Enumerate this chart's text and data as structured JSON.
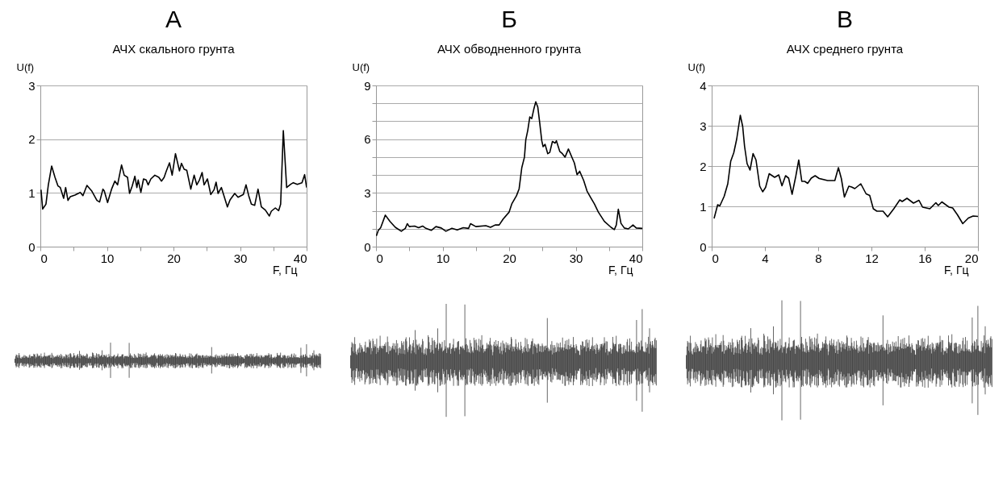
{
  "chart_data": [
    {
      "type": "line",
      "title": "А",
      "subtitle": "АЧХ скального грунта",
      "xlabel": "F, Гц",
      "ylabel": "U(f)",
      "xlim": [
        0,
        40
      ],
      "ylim": [
        0,
        3
      ],
      "xticks": [
        0,
        {
          "value": 5,
          "label": null
        },
        10,
        {
          "value": 15,
          "label": null
        },
        20,
        {
          "value": 25,
          "label": null
        },
        30,
        {
          "value": 35,
          "label": null
        },
        40
      ],
      "yticks": [
        0,
        1,
        2,
        3
      ],
      "grid": "y",
      "series": [
        {
          "color": "#000000",
          "x": [
            0.1,
            0.35,
            0.84,
            1.2,
            1.7,
            2.2,
            2.65,
            3.0,
            3.5,
            3.8,
            4.15,
            4.5,
            5.2,
            6.0,
            6.4,
            7.0,
            7.7,
            8.5,
            8.9,
            9.4,
            9.6,
            10.1,
            10.7,
            11.2,
            11.6,
            12.2,
            12.6,
            13.1,
            13.4,
            13.8,
            14.2,
            14.5,
            14.7,
            15.1,
            15.5,
            15.9,
            16.2,
            16.6,
            17.2,
            17.8,
            18.2,
            18.6,
            18.9,
            19.4,
            19.8,
            20.3,
            20.9,
            21.2,
            21.6,
            22.0,
            22.6,
            23.1,
            23.5,
            23.9,
            24.3,
            24.6,
            25.1,
            25.6,
            26.1,
            26.4,
            26.7,
            27.2,
            28.1,
            28.5,
            29.2,
            29.7,
            30.5,
            30.9,
            31.3,
            31.7,
            32.2,
            32.7,
            33.2,
            33.8,
            34.4,
            34.7,
            35.3,
            35.8,
            36.1,
            36.5,
            37.0,
            37.6,
            38.0,
            38.6,
            39.3,
            39.7,
            40.0
          ],
          "values": [
            1.06,
            0.7,
            0.79,
            1.15,
            1.5,
            1.29,
            1.13,
            1.1,
            0.9,
            1.1,
            0.86,
            0.93,
            0.96,
            1.01,
            0.95,
            1.14,
            1.04,
            0.86,
            0.83,
            1.07,
            1.04,
            0.82,
            1.07,
            1.22,
            1.15,
            1.52,
            1.33,
            1.29,
            0.99,
            1.13,
            1.31,
            1.1,
            1.24,
            1.01,
            1.26,
            1.24,
            1.15,
            1.26,
            1.33,
            1.29,
            1.22,
            1.29,
            1.4,
            1.56,
            1.33,
            1.73,
            1.41,
            1.55,
            1.44,
            1.42,
            1.07,
            1.33,
            1.15,
            1.24,
            1.38,
            1.15,
            1.26,
            0.97,
            1.06,
            1.2,
            0.99,
            1.1,
            0.74,
            0.87,
            0.99,
            0.92,
            0.97,
            1.15,
            0.95,
            0.79,
            0.77,
            1.07,
            0.74,
            0.68,
            0.57,
            0.66,
            0.72,
            0.67,
            0.79,
            2.16,
            1.1,
            1.16,
            1.19,
            1.16,
            1.19,
            1.34,
            1.1
          ]
        }
      ]
    },
    {
      "type": "line",
      "title": "Б",
      "subtitle": "АЧХ обводненного грунта",
      "xlabel": "F, Гц",
      "ylabel": "U(f)",
      "xlim": [
        0,
        40
      ],
      "ylim": [
        0,
        9
      ],
      "xticks": [
        0,
        {
          "value": 5,
          "label": null
        },
        10,
        {
          "value": 15,
          "label": null
        },
        20,
        {
          "value": 25,
          "label": null
        },
        30,
        {
          "value": 35,
          "label": null
        },
        40
      ],
      "yticks": [
        0,
        {
          "value": 1,
          "label": null
        },
        {
          "value": 2,
          "label": null
        },
        3,
        {
          "value": 4,
          "label": null
        },
        {
          "value": 5,
          "label": null
        },
        6,
        {
          "value": 7,
          "label": null
        },
        {
          "value": 8,
          "label": null
        },
        9
      ],
      "grid": "y",
      "series": [
        {
          "color": "#000000",
          "x": [
            0.05,
            0.35,
            0.7,
            1.4,
            2.1,
            2.9,
            3.8,
            4.4,
            4.7,
            5.0,
            5.8,
            6.4,
            7.0,
            7.5,
            8.3,
            9.0,
            9.8,
            10.5,
            11.4,
            12.2,
            13.1,
            13.9,
            14.2,
            15.0,
            16.5,
            17.2,
            17.9,
            18.5,
            19.1,
            20.0,
            20.4,
            21.1,
            21.5,
            21.9,
            22.3,
            22.5,
            22.8,
            23.1,
            23.4,
            23.7,
            24.0,
            24.3,
            24.6,
            24.9,
            25.1,
            25.4,
            25.8,
            26.1,
            26.5,
            26.9,
            27.1,
            27.6,
            28.0,
            28.4,
            28.9,
            29.5,
            29.8,
            30.2,
            30.6,
            31.2,
            31.7,
            32.3,
            32.8,
            33.4,
            34.3,
            35.3,
            35.8,
            36.1,
            36.4,
            36.8,
            37.3,
            37.9,
            38.6,
            39.1,
            40.0
          ],
          "values": [
            0.6,
            0.91,
            1.06,
            1.76,
            1.41,
            1.08,
            0.86,
            1.02,
            1.28,
            1.12,
            1.15,
            1.06,
            1.15,
            1.02,
            0.91,
            1.12,
            1.04,
            0.86,
            1.02,
            0.93,
            1.06,
            1.02,
            1.28,
            1.12,
            1.17,
            1.08,
            1.21,
            1.21,
            1.54,
            1.93,
            2.39,
            2.84,
            3.23,
            4.41,
            5.0,
            5.97,
            6.5,
            7.24,
            7.15,
            7.67,
            8.09,
            7.8,
            6.89,
            5.91,
            5.58,
            5.71,
            5.19,
            5.26,
            5.87,
            5.78,
            5.91,
            5.32,
            5.19,
            5.0,
            5.45,
            4.93,
            4.67,
            4.02,
            4.21,
            3.69,
            3.1,
            2.71,
            2.39,
            1.93,
            1.41,
            1.08,
            0.95,
            1.21,
            2.09,
            1.3,
            1.04,
            0.99,
            1.21,
            1.04,
            1.02
          ]
        }
      ]
    },
    {
      "type": "line",
      "title": "В",
      "subtitle": "АЧХ среднего грунта",
      "xlabel": "F, Гц",
      "ylabel": "U(f)",
      "xlim": [
        0,
        20
      ],
      "ylim": [
        0,
        4
      ],
      "xticks": [
        0,
        4,
        8,
        12,
        16,
        20
      ],
      "yticks": [
        0,
        1,
        2,
        3,
        4
      ],
      "grid": "y",
      "series": [
        {
          "color": "#000000",
          "x": [
            0.18,
            0.45,
            0.61,
            0.94,
            1.21,
            1.43,
            1.66,
            1.88,
            2.15,
            2.33,
            2.47,
            2.66,
            2.88,
            3.11,
            3.33,
            3.61,
            3.83,
            4.05,
            4.32,
            4.73,
            5.04,
            5.28,
            5.55,
            5.78,
            6.04,
            6.32,
            6.54,
            6.77,
            6.99,
            7.21,
            7.48,
            7.77,
            8.08,
            8.71,
            9.25,
            9.52,
            9.74,
            9.97,
            10.3,
            10.51,
            10.75,
            11.2,
            11.6,
            11.87,
            12.14,
            12.41,
            12.87,
            13.22,
            13.68,
            14.13,
            14.31,
            14.67,
            15.16,
            15.57,
            15.84,
            16.39,
            16.84,
            17.02,
            17.29,
            17.83,
            18.1,
            18.46,
            18.86,
            19.28,
            19.64,
            20.0
          ],
          "values": [
            0.7,
            1.04,
            1.01,
            1.25,
            1.56,
            2.12,
            2.33,
            2.67,
            3.26,
            2.98,
            2.49,
            2.06,
            1.9,
            2.31,
            2.15,
            1.5,
            1.36,
            1.47,
            1.81,
            1.72,
            1.78,
            1.51,
            1.76,
            1.7,
            1.3,
            1.75,
            2.15,
            1.62,
            1.62,
            1.57,
            1.7,
            1.76,
            1.69,
            1.64,
            1.64,
            1.96,
            1.69,
            1.23,
            1.5,
            1.48,
            1.44,
            1.56,
            1.31,
            1.27,
            0.94,
            0.88,
            0.88,
            0.74,
            0.94,
            1.16,
            1.12,
            1.2,
            1.08,
            1.15,
            0.98,
            0.94,
            1.09,
            1.02,
            1.11,
            0.98,
            0.96,
            0.79,
            0.57,
            0.71,
            0.76,
            0.75
          ]
        }
      ]
    }
  ]
}
